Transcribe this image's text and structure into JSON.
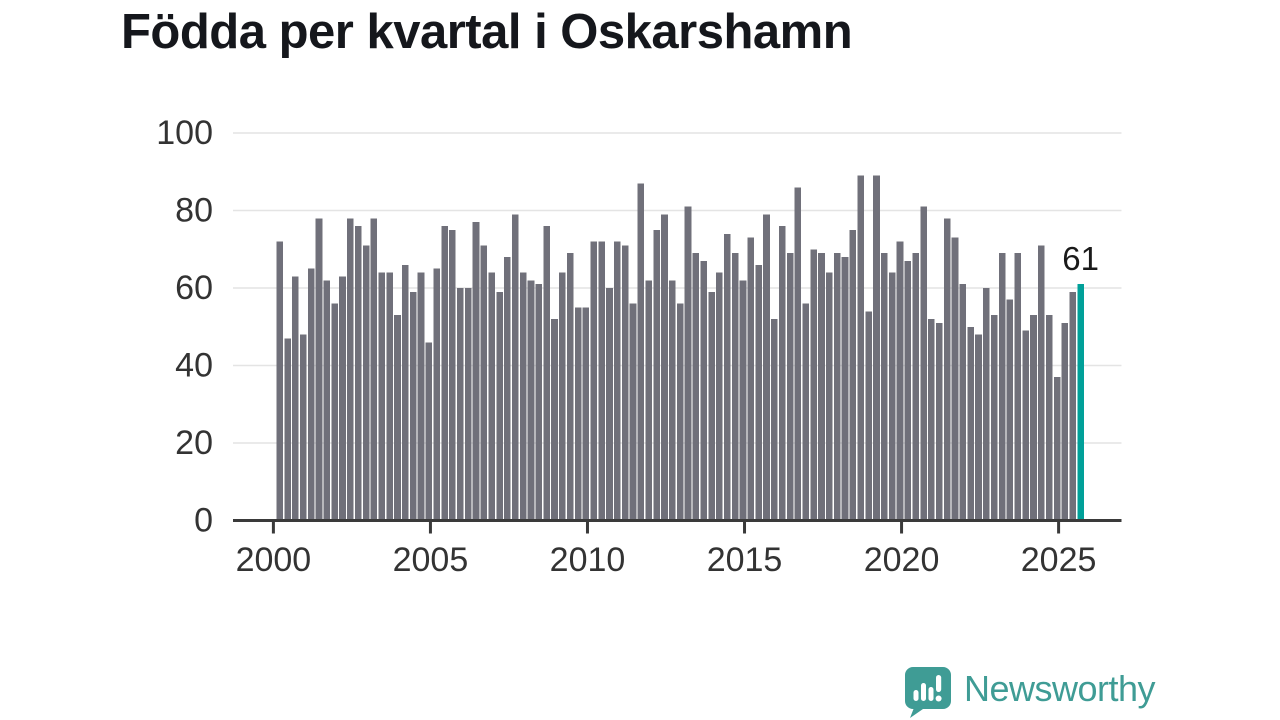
{
  "title": "Födda per kvartal i Oskarshamn",
  "branding": {
    "name": "Newsworthy"
  },
  "colors": {
    "bar": "#70707a",
    "highlight": "#00a099",
    "axis": "#3a3a3a",
    "grid": "#e4e4e4",
    "tick_text": "#333333",
    "annotation_text": "#1a1a1a",
    "brand": "#3f9c95"
  },
  "chart_data": {
    "type": "bar",
    "title": "Födda per kvartal i Oskarshamn",
    "frequency": "quarterly",
    "periods_start": "2000Q1",
    "periods_end": "2025Q3",
    "x_tick_labels": [
      "2000",
      "2005",
      "2010",
      "2015",
      "2020",
      "2025"
    ],
    "y_ticks": [
      0,
      20,
      40,
      60,
      80,
      100
    ],
    "ylim": [
      0,
      100
    ],
    "grid": true,
    "values": [
      72,
      47,
      63,
      48,
      65,
      78,
      62,
      56,
      63,
      78,
      76,
      71,
      78,
      64,
      64,
      53,
      66,
      59,
      64,
      46,
      65,
      76,
      75,
      60,
      60,
      77,
      71,
      64,
      59,
      68,
      79,
      64,
      62,
      61,
      76,
      52,
      64,
      69,
      55,
      55,
      72,
      72,
      60,
      72,
      71,
      56,
      87,
      62,
      75,
      79,
      62,
      56,
      81,
      69,
      67,
      59,
      64,
      74,
      69,
      62,
      73,
      66,
      79,
      52,
      76,
      69,
      86,
      56,
      70,
      69,
      64,
      69,
      68,
      75,
      89,
      54,
      89,
      69,
      64,
      72,
      67,
      69,
      81,
      52,
      51,
      78,
      73,
      61,
      50,
      48,
      60,
      53,
      69,
      57,
      69,
      49,
      53,
      71,
      53,
      37,
      51,
      59,
      61
    ],
    "highlight_last_value": true,
    "last_value_label": "61"
  }
}
